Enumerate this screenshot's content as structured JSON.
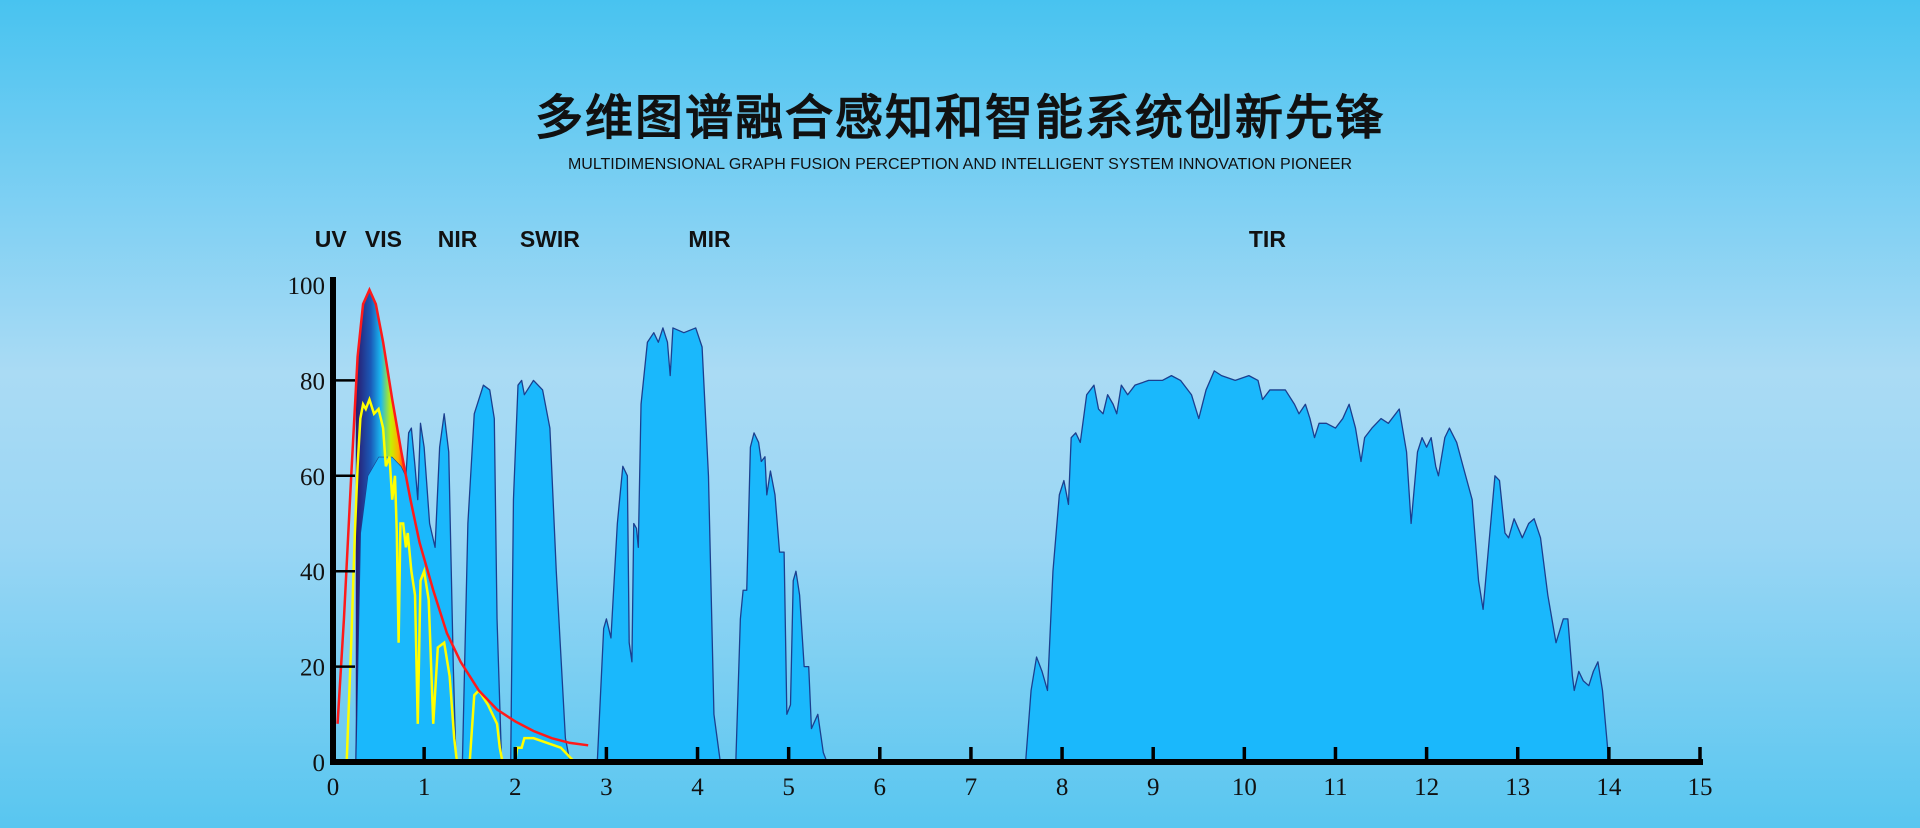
{
  "header": {
    "title": "多维图谱融合感知和智能系统创新先锋",
    "subtitle": "MULTIDIMENSIONAL GRAPH FUSION PERCEPTION AND INTELLIGENT SYSTEM INNOVATION PIONEER"
  },
  "chart_data": {
    "type": "line",
    "title": "多维图谱融合感知和智能系统创新先锋",
    "xlabel": "",
    "ylabel": "",
    "xlim": [
      0,
      15
    ],
    "ylim": [
      0,
      100
    ],
    "x_ticks": [
      "0",
      "1",
      "2",
      "3",
      "4",
      "5",
      "6",
      "7",
      "8",
      "9",
      "10",
      "11",
      "12",
      "13",
      "14",
      "15"
    ],
    "y_ticks": [
      "0",
      "20",
      "40",
      "60",
      "80",
      "100"
    ],
    "grid": false,
    "band_labels": [
      {
        "label": "UV",
        "x": -0.2
      },
      {
        "label": "VIS",
        "x": 0.35
      },
      {
        "label": "NIR",
        "x": 1.15
      },
      {
        "label": "SWIR",
        "x": 2.05
      },
      {
        "label": "MIR",
        "x": 3.9
      },
      {
        "label": "TIR",
        "x": 10.05
      }
    ],
    "colors": {
      "transmission_fill": "#1ab8fc",
      "transmission_stroke": "#1b3f8f",
      "blackbody": "#ff1a1a",
      "solar": "#ffff00"
    },
    "series": [
      {
        "kind": "area",
        "segments": [
          [
            [
              0.25,
              0
            ],
            [
              0.3,
              48
            ],
            [
              0.38,
              60
            ],
            [
              0.5,
              64
            ],
            [
              0.65,
              64
            ],
            [
              0.75,
              62
            ],
            [
              0.8,
              60
            ],
            [
              0.83,
              69
            ],
            [
              0.86,
              70
            ],
            [
              0.9,
              62
            ],
            [
              0.93,
              55
            ],
            [
              0.96,
              71
            ],
            [
              1.0,
              66
            ],
            [
              1.06,
              50
            ],
            [
              1.12,
              45
            ],
            [
              1.17,
              66
            ],
            [
              1.22,
              73
            ],
            [
              1.27,
              65
            ],
            [
              1.32,
              20
            ],
            [
              1.35,
              0
            ]
          ],
          [
            [
              1.42,
              0
            ],
            [
              1.48,
              50
            ],
            [
              1.55,
              73
            ],
            [
              1.65,
              79
            ],
            [
              1.72,
              78
            ],
            [
              1.77,
              72
            ],
            [
              1.8,
              30
            ],
            [
              1.85,
              0
            ]
          ],
          [
            [
              1.95,
              0
            ],
            [
              1.98,
              55
            ],
            [
              2.03,
              79
            ],
            [
              2.07,
              80
            ],
            [
              2.1,
              77
            ],
            [
              2.2,
              80
            ],
            [
              2.3,
              78
            ],
            [
              2.38,
              70
            ],
            [
              2.45,
              40
            ],
            [
              2.55,
              5
            ],
            [
              2.6,
              0
            ]
          ],
          [
            [
              2.9,
              0
            ],
            [
              2.97,
              28
            ],
            [
              3.0,
              30
            ],
            [
              3.05,
              26
            ],
            [
              3.12,
              50
            ],
            [
              3.18,
              62
            ],
            [
              3.23,
              60
            ],
            [
              3.25,
              25
            ],
            [
              3.28,
              21
            ],
            [
              3.3,
              50
            ],
            [
              3.33,
              49
            ],
            [
              3.35,
              45
            ],
            [
              3.38,
              75
            ],
            [
              3.45,
              88
            ],
            [
              3.52,
              90
            ],
            [
              3.57,
              88
            ],
            [
              3.62,
              91
            ],
            [
              3.67,
              88
            ],
            [
              3.7,
              81
            ],
            [
              3.73,
              91
            ],
            [
              3.85,
              90
            ],
            [
              3.98,
              91
            ],
            [
              4.05,
              87
            ],
            [
              4.12,
              60
            ],
            [
              4.18,
              10
            ],
            [
              4.25,
              0
            ]
          ],
          [
            [
              4.42,
              0
            ],
            [
              4.47,
              30
            ],
            [
              4.5,
              36
            ],
            [
              4.54,
              36
            ],
            [
              4.58,
              66
            ],
            [
              4.62,
              69
            ],
            [
              4.67,
              67
            ],
            [
              4.7,
              63
            ],
            [
              4.74,
              64
            ],
            [
              4.76,
              56
            ],
            [
              4.8,
              61
            ],
            [
              4.85,
              56
            ],
            [
              4.9,
              44
            ],
            [
              4.95,
              44
            ],
            [
              4.98,
              10
            ],
            [
              5.02,
              12
            ],
            [
              5.05,
              38
            ],
            [
              5.08,
              40
            ],
            [
              5.12,
              35
            ],
            [
              5.17,
              20
            ],
            [
              5.22,
              20
            ],
            [
              5.25,
              7
            ],
            [
              5.32,
              10
            ],
            [
              5.38,
              2
            ],
            [
              5.42,
              0
            ]
          ],
          [
            [
              7.6,
              0
            ],
            [
              7.66,
              15
            ],
            [
              7.72,
              22
            ],
            [
              7.78,
              19
            ],
            [
              7.84,
              15
            ],
            [
              7.9,
              40
            ],
            [
              7.97,
              56
            ],
            [
              8.02,
              59
            ],
            [
              8.07,
              54
            ],
            [
              8.1,
              68
            ],
            [
              8.15,
              69
            ],
            [
              8.2,
              67
            ],
            [
              8.27,
              77
            ],
            [
              8.35,
              79
            ],
            [
              8.4,
              74
            ],
            [
              8.45,
              73
            ],
            [
              8.5,
              77
            ],
            [
              8.56,
              75
            ],
            [
              8.6,
              73
            ],
            [
              8.65,
              79
            ],
            [
              8.72,
              77
            ],
            [
              8.8,
              79
            ],
            [
              8.95,
              80
            ],
            [
              9.1,
              80
            ],
            [
              9.2,
              81
            ],
            [
              9.3,
              80
            ],
            [
              9.42,
              77
            ],
            [
              9.5,
              72
            ],
            [
              9.58,
              78
            ],
            [
              9.67,
              82
            ],
            [
              9.75,
              81
            ],
            [
              9.9,
              80
            ],
            [
              10.05,
              81
            ],
            [
              10.15,
              80
            ],
            [
              10.2,
              76
            ],
            [
              10.28,
              78
            ],
            [
              10.45,
              78
            ],
            [
              10.55,
              75
            ],
            [
              10.6,
              73
            ],
            [
              10.67,
              75
            ],
            [
              10.72,
              72
            ],
            [
              10.77,
              68
            ],
            [
              10.82,
              71
            ],
            [
              10.9,
              71
            ],
            [
              11.0,
              70
            ],
            [
              11.08,
              72
            ],
            [
              11.15,
              75
            ],
            [
              11.22,
              70
            ],
            [
              11.28,
              63
            ],
            [
              11.32,
              68
            ],
            [
              11.4,
              70
            ],
            [
              11.5,
              72
            ],
            [
              11.58,
              71
            ],
            [
              11.7,
              74
            ],
            [
              11.78,
              65
            ],
            [
              11.83,
              50
            ],
            [
              11.9,
              65
            ],
            [
              11.95,
              68
            ],
            [
              12.0,
              66
            ],
            [
              12.05,
              68
            ],
            [
              12.1,
              62
            ],
            [
              12.13,
              60
            ],
            [
              12.2,
              68
            ],
            [
              12.25,
              70
            ],
            [
              12.33,
              67
            ],
            [
              12.4,
              62
            ],
            [
              12.5,
              55
            ],
            [
              12.57,
              38
            ],
            [
              12.62,
              32
            ],
            [
              12.68,
              45
            ],
            [
              12.75,
              60
            ],
            [
              12.8,
              59
            ],
            [
              12.86,
              48
            ],
            [
              12.9,
              47
            ],
            [
              12.96,
              51
            ],
            [
              13.05,
              47
            ],
            [
              13.12,
              50
            ],
            [
              13.18,
              51
            ],
            [
              13.25,
              47
            ],
            [
              13.33,
              35
            ],
            [
              13.42,
              25
            ],
            [
              13.5,
              30
            ],
            [
              13.55,
              30
            ],
            [
              13.6,
              18
            ],
            [
              13.62,
              15
            ],
            [
              13.67,
              19
            ],
            [
              13.72,
              17
            ],
            [
              13.78,
              16
            ],
            [
              13.83,
              19
            ],
            [
              13.88,
              21
            ],
            [
              13.93,
              15
            ],
            [
              14.0,
              0
            ]
          ]
        ]
      },
      {
        "kind": "line",
        "id": "blackbody",
        "points": [
          [
            0.05,
            8
          ],
          [
            0.12,
            30
          ],
          [
            0.2,
            60
          ],
          [
            0.27,
            85
          ],
          [
            0.33,
            96
          ],
          [
            0.4,
            99
          ],
          [
            0.47,
            96
          ],
          [
            0.55,
            88
          ],
          [
            0.65,
            76
          ],
          [
            0.75,
            65
          ],
          [
            0.85,
            55
          ],
          [
            0.95,
            46
          ],
          [
            1.1,
            36
          ],
          [
            1.25,
            27
          ],
          [
            1.4,
            21
          ],
          [
            1.6,
            15
          ],
          [
            1.8,
            11
          ],
          [
            2.0,
            8.5
          ],
          [
            2.2,
            6.5
          ],
          [
            2.4,
            5
          ],
          [
            2.6,
            4
          ],
          [
            2.8,
            3.5
          ]
        ]
      },
      {
        "kind": "line",
        "id": "solar",
        "points": [
          [
            0.15,
            0
          ],
          [
            0.2,
            25
          ],
          [
            0.24,
            48
          ],
          [
            0.27,
            62
          ],
          [
            0.3,
            72
          ],
          [
            0.33,
            75
          ],
          [
            0.36,
            74
          ],
          [
            0.4,
            76
          ],
          [
            0.45,
            73
          ],
          [
            0.5,
            74
          ],
          [
            0.55,
            70
          ],
          [
            0.58,
            62
          ],
          [
            0.62,
            64
          ],
          [
            0.65,
            55
          ],
          [
            0.68,
            60
          ],
          [
            0.7,
            48
          ],
          [
            0.72,
            25
          ],
          [
            0.74,
            50
          ],
          [
            0.77,
            50
          ],
          [
            0.8,
            45
          ],
          [
            0.82,
            48
          ],
          [
            0.86,
            40
          ],
          [
            0.9,
            35
          ],
          [
            0.93,
            8
          ],
          [
            0.96,
            38
          ],
          [
            1.0,
            40
          ],
          [
            1.05,
            34
          ],
          [
            1.1,
            8
          ],
          [
            1.15,
            24
          ],
          [
            1.22,
            25
          ],
          [
            1.28,
            18
          ],
          [
            1.33,
            5
          ],
          [
            1.36,
            0
          ],
          [
            1.5,
            0
          ],
          [
            1.55,
            14
          ],
          [
            1.6,
            15
          ],
          [
            1.7,
            12
          ],
          [
            1.8,
            8
          ],
          [
            1.83,
            3
          ],
          [
            1.86,
            0
          ],
          [
            2.0,
            0
          ],
          [
            2.02,
            3
          ],
          [
            2.07,
            3
          ],
          [
            2.1,
            5
          ],
          [
            2.2,
            5
          ],
          [
            2.35,
            4
          ],
          [
            2.5,
            3
          ],
          [
            2.6,
            1
          ],
          [
            2.65,
            0
          ]
        ]
      }
    ]
  }
}
